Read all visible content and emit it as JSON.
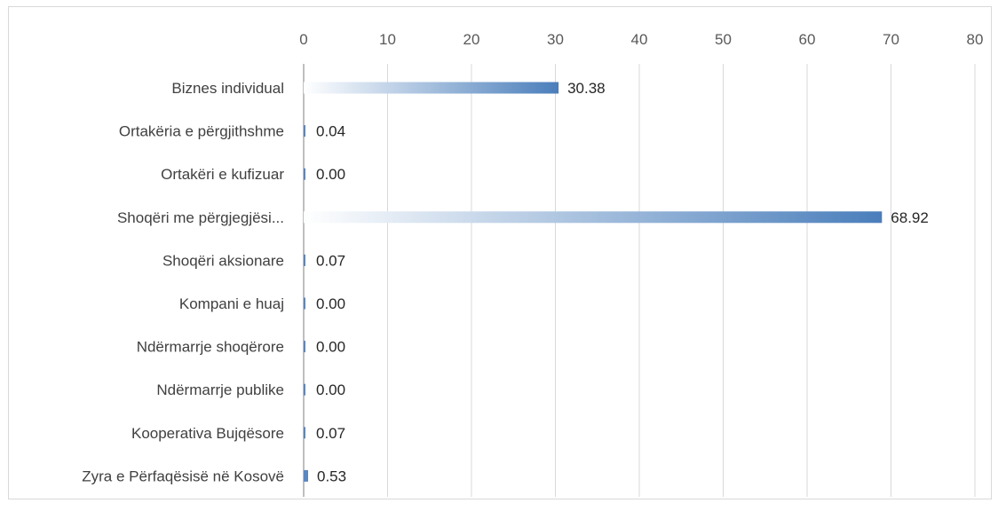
{
  "chart_data": {
    "type": "bar",
    "orientation": "horizontal",
    "categories": [
      "Biznes individual",
      "Ortakëria e përgjithshme",
      "Ortakëri e kufizuar",
      "Shoqëri me përgjegjësi...",
      "Shoqëri aksionare",
      "Kompani e huaj",
      "Ndërmarrje shoqërore",
      "Ndërmarrje publike",
      "Kooperativa Bujqësore",
      "Zyra e Përfaqësisë në Kosovë"
    ],
    "values": [
      30.38,
      0.04,
      0.0,
      68.92,
      0.07,
      0.0,
      0.0,
      0.0,
      0.07,
      0.53
    ],
    "data_labels": [
      "30.38",
      "0.04",
      "0.00",
      "68.92",
      "0.07",
      "0.00",
      "0.00",
      "0.00",
      "0.07",
      "0.53"
    ],
    "xlim": [
      0,
      80
    ],
    "x_ticks": [
      0,
      10,
      20,
      30,
      40,
      50,
      60,
      70,
      80
    ],
    "x_axis_position": "top",
    "grid": true,
    "legend": "none",
    "bar_gradient": [
      "#ffffff",
      "#4a7ebb"
    ],
    "title": "",
    "xlabel": "",
    "ylabel": ""
  }
}
